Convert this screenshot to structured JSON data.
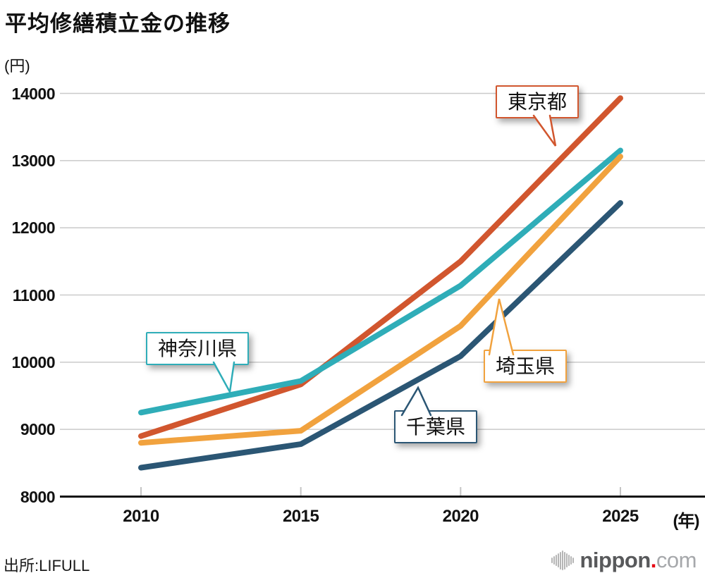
{
  "title": "平均修繕積立金の推移",
  "y_axis_unit": "(円)",
  "x_axis_unit": "(年)",
  "source": "出所:LIFULL",
  "logo": {
    "icon": "sound-wave-icon",
    "name": "nippon",
    "dot": ".",
    "tld": "com",
    "name_color": "#58595b",
    "dot_color": "#e60012",
    "tld_color": "#a6a8ab"
  },
  "colors": {
    "grid": "#cacaca",
    "axis": "#111111",
    "tick": "#c4c4c4",
    "background": "#ffffff"
  },
  "chart_data": {
    "type": "line",
    "title": "平均修繕積立金の推移",
    "x": [
      2010,
      2015,
      2020,
      2025
    ],
    "xticks": [
      "2010",
      "2015",
      "2020",
      "2025"
    ],
    "yticks": [
      8000,
      9000,
      10000,
      11000,
      12000,
      13000,
      14000
    ],
    "ylim": [
      8000,
      14000
    ],
    "ylabel_unit": "円",
    "xlabel_unit": "年",
    "grid": true,
    "legend": "callout-labels-on-plot",
    "series": [
      {
        "name": "東京都",
        "color": "#d1562e",
        "values": [
          8900,
          9670,
          11500,
          13930
        ]
      },
      {
        "name": "神奈川県",
        "color": "#2fadb8",
        "values": [
          9250,
          9720,
          11140,
          13150
        ]
      },
      {
        "name": "埼玉県",
        "color": "#f1a23e",
        "values": [
          8800,
          8980,
          10540,
          13060
        ]
      },
      {
        "name": "千葉県",
        "color": "#2b5674",
        "values": [
          8430,
          8780,
          10090,
          12370
        ]
      }
    ]
  }
}
